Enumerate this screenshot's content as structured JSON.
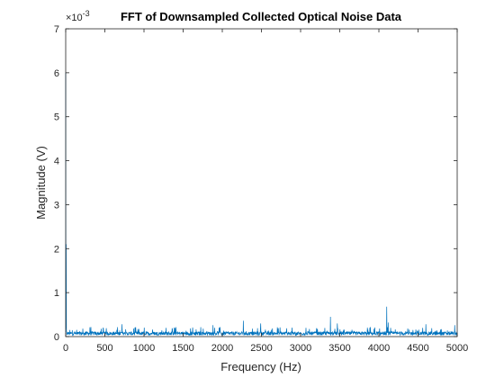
{
  "chart_data": {
    "type": "line",
    "title": "FFT of Downsampled Collected Optical Noise Data",
    "xlabel": "Frequency (Hz)",
    "ylabel": "Magnitude (V)",
    "y_exponent_label": "×10",
    "y_exponent_power": "-3",
    "xlim": [
      0,
      5000
    ],
    "ylim": [
      0,
      7
    ],
    "x_ticks": [
      "0",
      "500",
      "1000",
      "1500",
      "2000",
      "2500",
      "3000",
      "3500",
      "4000",
      "4500",
      "5000"
    ],
    "y_ticks": [
      "0",
      "1",
      "2",
      "3",
      "4",
      "5",
      "6",
      "7"
    ],
    "grid": false,
    "line_color": "#0072BD",
    "series": [
      {
        "name": "",
        "noise_floor_mean": 0.09,
        "noise_floor_max": 0.22,
        "peaks": [
          {
            "x": 0,
            "y": 6.0
          },
          {
            "x": 5,
            "y": 2.1
          },
          {
            "x": 720,
            "y": 0.28
          },
          {
            "x": 1880,
            "y": 0.26
          },
          {
            "x": 2270,
            "y": 0.36
          },
          {
            "x": 2490,
            "y": 0.3
          },
          {
            "x": 3380,
            "y": 0.45
          },
          {
            "x": 3470,
            "y": 0.3
          },
          {
            "x": 4100,
            "y": 0.68
          },
          {
            "x": 4120,
            "y": 0.32
          },
          {
            "x": 4600,
            "y": 0.28
          },
          {
            "x": 4970,
            "y": 0.26
          }
        ]
      }
    ]
  }
}
